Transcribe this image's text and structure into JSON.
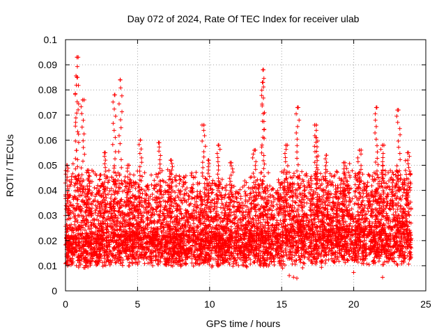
{
  "chart_data": {
    "type": "scatter",
    "title": "Day 072 of 2024, Rate Of TEC Index for receiver ulab",
    "xlabel": "GPS time / hours",
    "ylabel": "ROTI / TECUs",
    "xlim": [
      0,
      25
    ],
    "ylim": [
      0,
      0.1
    ],
    "x_ticks": [
      "0",
      "5",
      "10",
      "15",
      "20",
      "25"
    ],
    "y_ticks": [
      "0",
      "0.01",
      "0.02",
      "0.03",
      "0.04",
      "0.05",
      "0.06",
      "0.07",
      "0.08",
      "0.09",
      "0.1"
    ],
    "grid": true,
    "marker": "plus",
    "color": "#ff0000",
    "series_note_points_are_dense": "",
    "peaks": [
      {
        "x": 0.1,
        "y": 0.05
      },
      {
        "x": 0.8,
        "y": 0.093
      },
      {
        "x": 0.8,
        "y": 0.085
      },
      {
        "x": 1.2,
        "y": 0.076
      },
      {
        "x": 1.6,
        "y": 0.048
      },
      {
        "x": 2.7,
        "y": 0.055
      },
      {
        "x": 3.4,
        "y": 0.078
      },
      {
        "x": 3.8,
        "y": 0.084
      },
      {
        "x": 4.4,
        "y": 0.05
      },
      {
        "x": 5.2,
        "y": 0.06
      },
      {
        "x": 6.5,
        "y": 0.059
      },
      {
        "x": 7.3,
        "y": 0.052
      },
      {
        "x": 9.6,
        "y": 0.066
      },
      {
        "x": 9.9,
        "y": 0.052
      },
      {
        "x": 10.6,
        "y": 0.058
      },
      {
        "x": 11.5,
        "y": 0.051
      },
      {
        "x": 13.1,
        "y": 0.056
      },
      {
        "x": 13.7,
        "y": 0.088
      },
      {
        "x": 13.7,
        "y": 0.083
      },
      {
        "x": 15.3,
        "y": 0.058
      },
      {
        "x": 16.1,
        "y": 0.073
      },
      {
        "x": 17.4,
        "y": 0.066
      },
      {
        "x": 17.4,
        "y": 0.061
      },
      {
        "x": 18.1,
        "y": 0.054
      },
      {
        "x": 19.3,
        "y": 0.051
      },
      {
        "x": 20.4,
        "y": 0.056
      },
      {
        "x": 21.6,
        "y": 0.073
      },
      {
        "x": 22.0,
        "y": 0.058
      },
      {
        "x": 23.1,
        "y": 0.072
      },
      {
        "x": 23.8,
        "y": 0.055
      }
    ],
    "segments": [
      {
        "x_start": 0.0,
        "x_end": 2.0,
        "y_base": 0.013,
        "y_spread": 0.03
      },
      {
        "x_start": 2.0,
        "x_end": 4.6,
        "y_base": 0.014,
        "y_spread": 0.03
      },
      {
        "x_start": 4.6,
        "x_end": 6.2,
        "y_base": 0.014,
        "y_spread": 0.028
      },
      {
        "x_start": 6.2,
        "x_end": 9.3,
        "y_base": 0.014,
        "y_spread": 0.028
      },
      {
        "x_start": 9.3,
        "x_end": 12.8,
        "y_base": 0.013,
        "y_spread": 0.026
      },
      {
        "x_start": 12.8,
        "x_end": 15.0,
        "y_base": 0.014,
        "y_spread": 0.028
      },
      {
        "x_start": 15.0,
        "x_end": 18.5,
        "y_base": 0.016,
        "y_spread": 0.03
      },
      {
        "x_start": 18.5,
        "x_end": 21.0,
        "y_base": 0.016,
        "y_spread": 0.03
      },
      {
        "x_start": 21.0,
        "x_end": 24.0,
        "y_base": 0.015,
        "y_spread": 0.03
      }
    ]
  }
}
